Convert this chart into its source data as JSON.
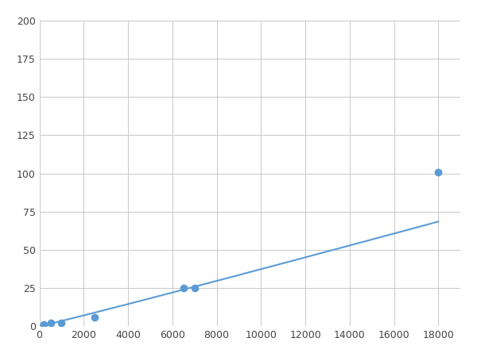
{
  "x": [
    200,
    500,
    1000,
    2500,
    6500,
    7000,
    18000
  ],
  "y": [
    1,
    2,
    2,
    6,
    25,
    25,
    101
  ],
  "line_color": "#5B9BD5",
  "marker_color": "#5B9BD5",
  "marker_size": 6,
  "linewidth": 1.5,
  "xlim": [
    0,
    19000
  ],
  "ylim": [
    0,
    200
  ],
  "xticks": [
    0,
    2000,
    4000,
    6000,
    8000,
    10000,
    12000,
    14000,
    16000,
    18000
  ],
  "yticks": [
    0,
    25,
    50,
    75,
    100,
    125,
    150,
    175,
    200
  ],
  "grid_color": "#CCCCCC",
  "background_color": "#FFFFFF",
  "figsize": [
    6.0,
    4.5
  ],
  "dpi": 100
}
